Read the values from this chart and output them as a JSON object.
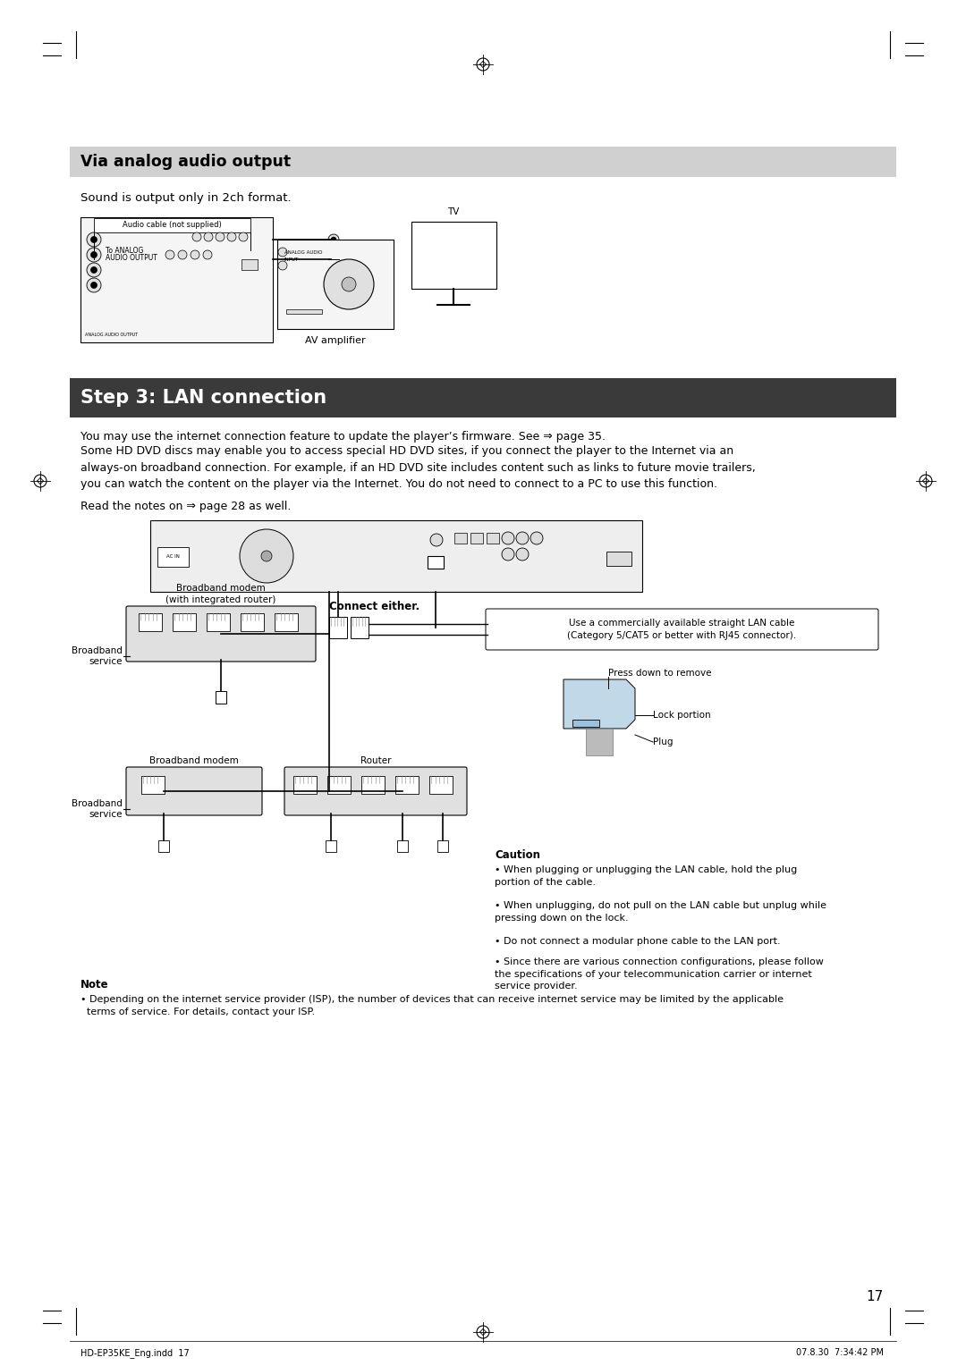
{
  "bg_color": "#ffffff",
  "section1_title": "Via analog audio output",
  "section1_title_bg": "#d0d0d0",
  "section1_subtitle": "Sound is output only in 2ch format.",
  "section2_title": "Step 3: LAN connection",
  "section2_title_bg": "#3a3a3a",
  "section2_title_color": "#ffffff",
  "body_text1": "You may use the internet connection feature to update the player’s firmware. See ⇒ page 35.",
  "body_text2": "Some HD DVD discs may enable you to access special HD DVD sites, if you connect the player to the Internet via an\nalways-on broadband connection. For example, if an HD DVD site includes content such as links to future movie trailers,\nyou can watch the content on the player via the Internet. You do not need to connect to a PC to use this function.",
  "body_text3": "Read the notes on ⇒ page 28 as well.",
  "connect_label": "Connect either.",
  "cable_label": "Use a commercially available straight LAN cable\n(Category 5/CAT5 or better with RJ45 connector).",
  "press_label": "Press down to remove",
  "lock_label": "Lock portion",
  "plug_label": "Plug",
  "broadband_modem_label1": "Broadband modem\n(with integrated router)",
  "broadband_service_label1": "Broadband\nservice",
  "broadband_modem_label2": "Broadband modem",
  "router_label": "Router",
  "broadband_service_label2": "Broadband\nservice",
  "caution_title": "Caution",
  "caution_bullets": [
    "When plugging or unplugging the LAN cable, hold the plug\nportion of the cable.",
    "When unplugging, do not pull on the LAN cable but unplug while\npressing down on the lock.",
    "Do not connect a modular phone cable to the LAN port.",
    "Since there are various connection configurations, please follow\nthe specifications of your telecommunication carrier or internet\nservice provider."
  ],
  "note_title": "Note",
  "note_text": "• Depending on the internet service provider (ISP), the number of devices that can receive internet service may be limited by the applicable\n  terms of service. For details, contact your ISP.",
  "audio_cable_label": "Audio cable (not supplied)",
  "tv_label": "TV",
  "av_amp_label": "AV amplifier",
  "page_number": "17",
  "footer_left": "HD-EP35KE_Eng.indd  17",
  "footer_right": "07.8.30  7:34:42 PM"
}
